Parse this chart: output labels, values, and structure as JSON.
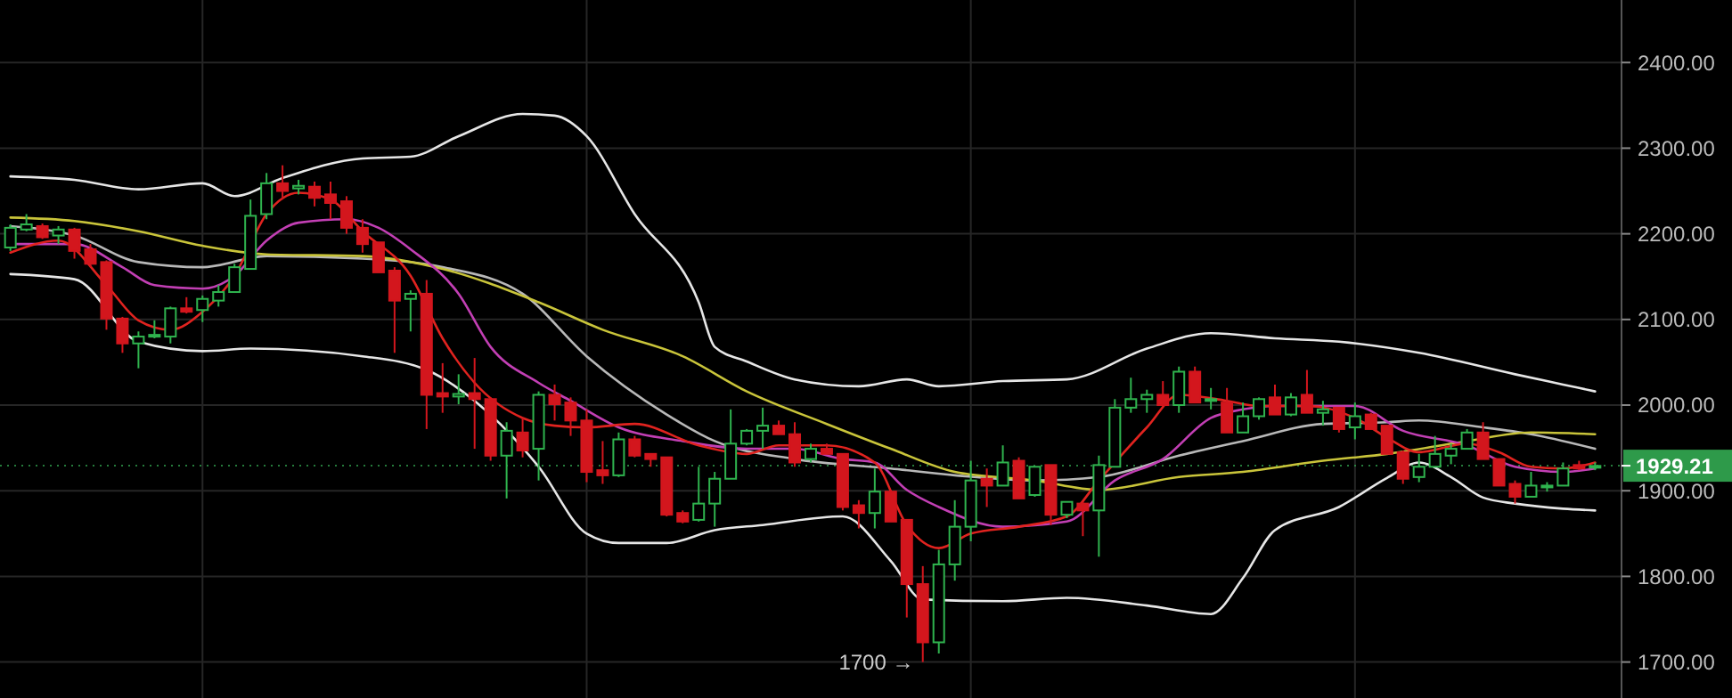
{
  "chart_data": {
    "type": "candlestick",
    "categories": [
      null,
      null,
      null,
      null,
      null,
      null,
      null,
      null,
      null,
      null,
      null,
      null,
      null,
      null,
      null,
      null,
      null,
      null,
      null,
      null,
      null,
      null,
      null,
      null,
      null,
      null,
      null,
      null,
      null,
      null,
      null,
      null,
      null,
      null,
      null,
      null,
      null,
      null,
      null,
      null,
      null,
      null,
      null,
      null,
      null,
      null,
      null,
      null,
      null,
      null,
      null,
      null,
      null,
      null,
      null,
      null,
      null,
      null,
      null,
      null,
      null,
      null,
      null,
      null,
      null,
      null,
      null,
      null,
      null,
      null,
      null,
      null,
      null,
      null,
      null,
      null,
      null,
      null,
      null,
      null,
      null,
      null,
      null,
      null,
      null,
      null,
      null,
      null,
      null,
      null,
      null,
      null,
      null,
      null,
      null,
      null,
      null,
      null,
      null,
      null
    ],
    "ohlc": [
      [
        2184,
        2211,
        2180,
        2207
      ],
      [
        2205,
        2223,
        2203,
        2211
      ],
      [
        2209,
        2212,
        2194,
        2196
      ],
      [
        2198,
        2209,
        2188,
        2205
      ],
      [
        2205,
        2207,
        2171,
        2180
      ],
      [
        2182,
        2188,
        2161,
        2165
      ],
      [
        2167,
        2169,
        2088,
        2101
      ],
      [
        2101,
        2103,
        2061,
        2072
      ],
      [
        2072,
        2086,
        2043,
        2080
      ],
      [
        2080,
        2099,
        2078,
        2082
      ],
      [
        2080,
        2115,
        2072,
        2113
      ],
      [
        2113,
        2126,
        2107,
        2109
      ],
      [
        2111,
        2128,
        2097,
        2124
      ],
      [
        2122,
        2140,
        2115,
        2132
      ],
      [
        2132,
        2165,
        2132,
        2161
      ],
      [
        2159,
        2240,
        2159,
        2221
      ],
      [
        2223,
        2271,
        2217,
        2259
      ],
      [
        2259,
        2280,
        2240,
        2250
      ],
      [
        2253,
        2263,
        2246,
        2256
      ],
      [
        2255,
        2261,
        2232,
        2242
      ],
      [
        2246,
        2261,
        2217,
        2236
      ],
      [
        2238,
        2244,
        2200,
        2207
      ],
      [
        2207,
        2217,
        2178,
        2188
      ],
      [
        2190,
        2190,
        2155,
        2155
      ],
      [
        2157,
        2161,
        2061,
        2122
      ],
      [
        2124,
        2134,
        2086,
        2130
      ],
      [
        2130,
        2146,
        1972,
        2012
      ],
      [
        2014,
        2049,
        1991,
        2010
      ],
      [
        2010,
        2036,
        2001,
        2013
      ],
      [
        2014,
        2055,
        1949,
        2007
      ],
      [
        2007,
        2009,
        1935,
        1941
      ],
      [
        1941,
        1980,
        1891,
        1970
      ],
      [
        1968,
        1985,
        1939,
        1947
      ],
      [
        1949,
        2016,
        1912,
        2012
      ],
      [
        2012,
        2024,
        1982,
        2001
      ],
      [
        2003,
        2009,
        1964,
        1982
      ],
      [
        1982,
        1995,
        1910,
        1922
      ],
      [
        1924,
        1958,
        1908,
        1918
      ],
      [
        1918,
        1968,
        1916,
        1960
      ],
      [
        1960,
        1964,
        1939,
        1941
      ],
      [
        1943,
        1943,
        1928,
        1937
      ],
      [
        1939,
        1939,
        1870,
        1872
      ],
      [
        1874,
        1877,
        1862,
        1864
      ],
      [
        1866,
        1928,
        1864,
        1885
      ],
      [
        1885,
        1922,
        1858,
        1914
      ],
      [
        1914,
        1995,
        1914,
        1955
      ],
      [
        1955,
        1972,
        1953,
        1970
      ],
      [
        1970,
        1997,
        1949,
        1976
      ],
      [
        1976,
        1982,
        1966,
        1966
      ],
      [
        1966,
        1980,
        1928,
        1933
      ],
      [
        1937,
        1955,
        1933,
        1949
      ],
      [
        1949,
        1955,
        1943,
        1943
      ],
      [
        1943,
        1943,
        1877,
        1881
      ],
      [
        1883,
        1889,
        1856,
        1874
      ],
      [
        1874,
        1926,
        1856,
        1899
      ],
      [
        1899,
        1901,
        1864,
        1864
      ],
      [
        1866,
        1866,
        1752,
        1791
      ],
      [
        1791,
        1812,
        1700,
        1723
      ],
      [
        1723,
        1831,
        1710,
        1814
      ],
      [
        1814,
        1889,
        1795,
        1858
      ],
      [
        1858,
        1935,
        1841,
        1912
      ],
      [
        1914,
        1926,
        1881,
        1906
      ],
      [
        1906,
        1953,
        1906,
        1933
      ],
      [
        1935,
        1939,
        1891,
        1891
      ],
      [
        1895,
        1928,
        1893,
        1928
      ],
      [
        1930,
        1930,
        1860,
        1872
      ],
      [
        1872,
        1887,
        1868,
        1887
      ],
      [
        1885,
        1887,
        1847,
        1877
      ],
      [
        1877,
        1941,
        1823,
        1930
      ],
      [
        1928,
        2007,
        1928,
        1997
      ],
      [
        1997,
        2032,
        1991,
        2007
      ],
      [
        2007,
        2018,
        1991,
        2012
      ],
      [
        2012,
        2028,
        2000,
        2000
      ],
      [
        2000,
        2045,
        1991,
        2039
      ],
      [
        2039,
        2045,
        2003,
        2003
      ],
      [
        2005,
        2020,
        1995,
        2007
      ],
      [
        2003,
        2020,
        1968,
        1968
      ],
      [
        1968,
        2003,
        1968,
        1987
      ],
      [
        1987,
        2009,
        1983,
        2007
      ],
      [
        2009,
        2024,
        1989,
        1989
      ],
      [
        1989,
        2014,
        1987,
        2009
      ],
      [
        2012,
        2041,
        1991,
        1991
      ],
      [
        1991,
        2005,
        1976,
        1995
      ],
      [
        1997,
        1997,
        1968,
        1972
      ],
      [
        1974,
        2003,
        1960,
        1987
      ],
      [
        1989,
        1991,
        1972,
        1972
      ],
      [
        1976,
        1976,
        1943,
        1943
      ],
      [
        1945,
        1947,
        1908,
        1914
      ],
      [
        1916,
        1943,
        1910,
        1928
      ],
      [
        1928,
        1964,
        1928,
        1943
      ],
      [
        1941,
        1955,
        1931,
        1949
      ],
      [
        1949,
        1972,
        1949,
        1968
      ],
      [
        1968,
        1980,
        1937,
        1937
      ],
      [
        1937,
        1937,
        1906,
        1906
      ],
      [
        1908,
        1912,
        1885,
        1893
      ],
      [
        1893,
        1922,
        1893,
        1906
      ],
      [
        1904,
        1910,
        1899,
        1906
      ],
      [
        1906,
        1933,
        1906,
        1926
      ],
      [
        1930,
        1935,
        1924,
        1926
      ],
      [
        1928,
        1933,
        1924,
        1929
      ]
    ],
    "colors": [
      "#2fb34e",
      "#2fb34e",
      "#d3161d",
      "#2fb34e",
      "#d3161d",
      "#d3161d",
      "#d3161d",
      "#d3161d",
      "#2fb34e",
      "#2fb34e",
      "#2fb34e",
      "#d3161d",
      "#2fb34e",
      "#2fb34e",
      "#2fb34e",
      "#2fb34e",
      "#2fb34e",
      "#d3161d",
      "#2fb34e",
      "#d3161d",
      "#d3161d",
      "#d3161d",
      "#d3161d",
      "#d3161d",
      "#d3161d",
      "#2fb34e",
      "#d3161d",
      "#d3161d",
      "#2fb34e",
      "#d3161d",
      "#d3161d",
      "#2fb34e",
      "#d3161d",
      "#2fb34e",
      "#d3161d",
      "#d3161d",
      "#d3161d",
      "#d3161d",
      "#2fb34e",
      "#d3161d",
      "#d3161d",
      "#d3161d",
      "#d3161d",
      "#2fb34e",
      "#2fb34e",
      "#2fb34e",
      "#2fb34e",
      "#2fb34e",
      "#d3161d",
      "#d3161d",
      "#2fb34e",
      "#d3161d",
      "#d3161d",
      "#d3161d",
      "#2fb34e",
      "#d3161d",
      "#d3161d",
      "#d3161d",
      "#2fb34e",
      "#2fb34e",
      "#2fb34e",
      "#d3161d",
      "#2fb34e",
      "#d3161d",
      "#2fb34e",
      "#d3161d",
      "#2fb34e",
      "#d3161d",
      "#2fb34e",
      "#2fb34e",
      "#2fb34e",
      "#2fb34e",
      "#d3161d",
      "#2fb34e",
      "#d3161d",
      "#2fb34e",
      "#d3161d",
      "#2fb34e",
      "#2fb34e",
      "#d3161d",
      "#2fb34e",
      "#d3161d",
      "#2fb34e",
      "#d3161d",
      "#2fb34e",
      "#d3161d",
      "#d3161d",
      "#d3161d",
      "#2fb34e",
      "#2fb34e",
      "#2fb34e",
      "#2fb34e",
      "#d3161d",
      "#d3161d",
      "#d3161d",
      "#2fb34e",
      "#2fb34e",
      "#2fb34e",
      "#d3161d",
      "#2fb34e"
    ],
    "series": [
      {
        "type": "line",
        "color": "#e6e6e6",
        "values": [
          2267,
          null,
          null,
          null,
          2263,
          null,
          null,
          null,
          2252,
          null,
          null,
          null,
          2259,
          null,
          2244,
          null,
          null,
          2265,
          null,
          null,
          null,
          null,
          2288,
          null,
          null,
          2290,
          null,
          null,
          2314,
          null,
          null,
          null,
          2340,
          null,
          2338,
          null,
          2314,
          null,
          null,
          2223,
          null,
          null,
          null,
          2120,
          2068,
          null,
          2051,
          null,
          null,
          2030,
          null,
          null,
          null,
          2022,
          null,
          null,
          2030,
          null,
          2022,
          null,
          null,
          null,
          2028,
          null,
          null,
          null,
          2030,
          null,
          null,
          null,
          null,
          2066,
          null,
          null,
          null,
          2084,
          null,
          null,
          null,
          2078,
          null,
          null,
          null,
          2074,
          null,
          null,
          null,
          null,
          2061,
          null,
          null,
          null,
          null,
          null,
          2036,
          null,
          null,
          2024,
          null,
          2016
        ]
      },
      {
        "type": "line",
        "color": "#e6e6e6",
        "values": [
          2153,
          null,
          null,
          null,
          2147,
          null,
          null,
          null,
          2074,
          null,
          null,
          null,
          2063,
          null,
          null,
          2066,
          null,
          null,
          null,
          null,
          null,
          null,
          2057,
          null,
          null,
          null,
          2041,
          null,
          null,
          2005,
          null,
          null,
          null,
          1928,
          null,
          null,
          1850,
          null,
          1839,
          null,
          null,
          1839,
          null,
          null,
          1854,
          null,
          null,
          1860,
          null,
          null,
          null,
          null,
          1870,
          null,
          null,
          1818,
          null,
          1773,
          null,
          null,
          null,
          null,
          1771,
          null,
          null,
          null,
          1775,
          null,
          null,
          null,
          null,
          1766,
          null,
          null,
          null,
          1756,
          null,
          1798,
          null,
          1854,
          null,
          null,
          null,
          1881,
          null,
          null,
          1915,
          null,
          1933,
          null,
          1916,
          null,
          1892,
          null,
          1885,
          null,
          null,
          1879,
          null,
          1877
        ]
      },
      {
        "type": "line",
        "color": "#b8b8b8",
        "values": [
          2209,
          null,
          null,
          null,
          2198,
          null,
          null,
          null,
          2167,
          null,
          null,
          null,
          2161,
          null,
          null,
          null,
          2174,
          null,
          null,
          null,
          null,
          null,
          2171,
          null,
          null,
          null,
          null,
          2161,
          null,
          null,
          null,
          null,
          2130,
          null,
          null,
          null,
          2057,
          null,
          null,
          null,
          null,
          1989,
          null,
          null,
          1958,
          null,
          null,
          null,
          null,
          1937,
          null,
          null,
          null,
          null,
          null,
          1926,
          null,
          null,
          null,
          1918,
          null,
          null,
          null,
          null,
          1912,
          null,
          null,
          null,
          1916,
          null,
          null,
          null,
          null,
          1941,
          null,
          null,
          null,
          1958,
          null,
          null,
          null,
          null,
          1978,
          null,
          null,
          null,
          1980,
          null,
          1982,
          null,
          null,
          null,
          1974,
          null,
          null,
          1966,
          null,
          null,
          null,
          1949
        ]
      },
      {
        "type": "line",
        "color": "#c9c43a",
        "values": [
          2219,
          null,
          null,
          null,
          2215,
          null,
          null,
          null,
          2203,
          null,
          null,
          null,
          2186,
          null,
          null,
          null,
          2176,
          null,
          null,
          null,
          null,
          null,
          2174,
          null,
          null,
          null,
          null,
          2159,
          null,
          null,
          null,
          null,
          null,
          2120,
          null,
          null,
          null,
          2088,
          null,
          null,
          null,
          null,
          2057,
          null,
          null,
          null,
          2016,
          null,
          null,
          null,
          null,
          1978,
          null,
          null,
          null,
          1949,
          null,
          null,
          null,
          1922,
          null,
          null,
          null,
          null,
          1912,
          null,
          null,
          null,
          1901,
          null,
          null,
          null,
          null,
          1916,
          null,
          null,
          null,
          1922,
          null,
          null,
          null,
          null,
          1935,
          null,
          null,
          null,
          1943,
          null,
          null,
          null,
          null,
          1958,
          null,
          null,
          null,
          1968,
          null,
          null,
          null,
          1966
        ]
      },
      {
        "type": "line",
        "color": "#c23fb4",
        "values": [
          2188,
          null,
          null,
          null,
          2188,
          null,
          null,
          2161,
          null,
          2140,
          null,
          null,
          2136,
          null,
          2151,
          null,
          2192,
          null,
          2213,
          null,
          null,
          2217,
          null,
          2207,
          null,
          2182,
          null,
          null,
          2130,
          null,
          2068,
          null,
          null,
          2026,
          null,
          2005,
          null,
          null,
          1974,
          null,
          null,
          null,
          1958,
          null,
          null,
          null,
          1949,
          null,
          null,
          1949,
          null,
          null,
          1937,
          null,
          1933,
          null,
          1901,
          null,
          1881,
          null,
          null,
          null,
          1858,
          null,
          null,
          null,
          1864,
          null,
          null,
          1912,
          null,
          null,
          1937,
          null,
          null,
          1985,
          null,
          1995,
          null,
          1999,
          null,
          null,
          null,
          null,
          1999,
          null,
          null,
          1970,
          null,
          null,
          null,
          1953,
          null,
          null,
          1928,
          null,
          null,
          1922,
          null,
          1926
        ]
      },
      {
        "type": "line",
        "color": "#e0231f",
        "values": [
          2178,
          null,
          null,
          2192,
          null,
          null,
          2140,
          null,
          2099,
          null,
          2088,
          null,
          2109,
          null,
          2151,
          null,
          2223,
          null,
          2248,
          null,
          2240,
          null,
          2203,
          null,
          null,
          2151,
          null,
          2078,
          null,
          2026,
          null,
          null,
          1985,
          null,
          1976,
          null,
          1974,
          null,
          null,
          1978,
          null,
          null,
          null,
          1953,
          null,
          null,
          1943,
          null,
          1953,
          null,
          null,
          1953,
          null,
          null,
          1933,
          null,
          1860,
          null,
          1833,
          null,
          1850,
          null,
          null,
          1858,
          null,
          null,
          1870,
          null,
          1912,
          null,
          null,
          1974,
          null,
          2012,
          null,
          null,
          2005,
          null,
          1999,
          null,
          null,
          1999,
          null,
          null,
          1985,
          null,
          1962,
          null,
          1945,
          null,
          null,
          1955,
          null,
          1945,
          null,
          1928,
          null,
          1926,
          null,
          1933
        ]
      }
    ],
    "ylim": [
      1658,
      2473
    ],
    "yticks": [
      {
        "value": 1700,
        "label": "1700.00"
      },
      {
        "value": 1800,
        "label": "1800.00"
      },
      {
        "value": 1900,
        "label": "1900.00"
      },
      {
        "value": 2000,
        "label": "2000.00"
      },
      {
        "value": 2100,
        "label": "2100.00"
      },
      {
        "value": 2200,
        "label": "2200.00"
      },
      {
        "value": 2300,
        "label": "2300.00"
      },
      {
        "value": 2400,
        "label": "2400.00"
      }
    ],
    "grid": true,
    "ref_lines": [
      {
        "axis": "y",
        "value": 1929.21,
        "label": "1929.21",
        "color": "#2e9a4a"
      }
    ],
    "annotations": [
      "1700 →"
    ]
  }
}
